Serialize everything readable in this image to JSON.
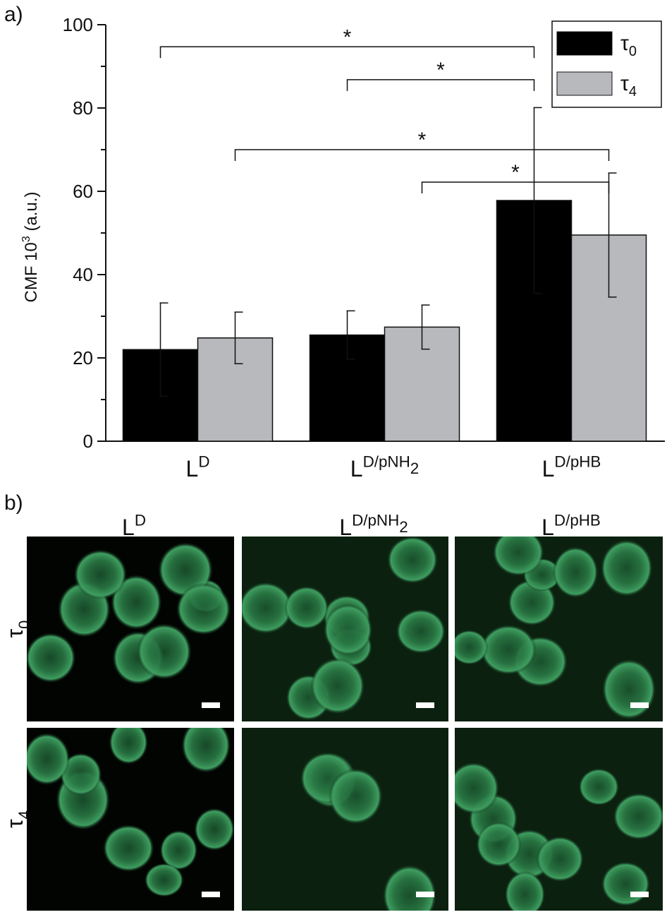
{
  "chart_data": {
    "type": "bar",
    "panel_label": "a)",
    "y_label": {
      "text": "CMF  10",
      "superscript": "3",
      "suffix": " (a.u.)"
    },
    "categories": [
      {
        "base": "L",
        "sup": "D"
      },
      {
        "base": "L",
        "sup": "D/pNH",
        "sup_sub": "2"
      },
      {
        "base": "L",
        "sup": "D/pHB"
      }
    ],
    "series": [
      {
        "name": "τ",
        "name_sub": "0",
        "color": "#000000",
        "values": [
          22,
          25.5,
          57.8
        ],
        "errors": [
          11.2,
          5.8,
          22.3
        ]
      },
      {
        "name": "τ",
        "name_sub": "4",
        "color": "#b8b9bd",
        "values": [
          24.8,
          27.4,
          49.5
        ],
        "errors": [
          6.2,
          5.3,
          14.9
        ]
      }
    ],
    "ylim": [
      0,
      100
    ],
    "yticks": [
      0,
      20,
      40,
      60,
      80,
      100
    ],
    "minor_yticks": [
      10,
      30,
      50,
      70,
      90
    ],
    "legend": "upper right",
    "brackets": [
      {
        "label": "*",
        "y": 94.7,
        "from_category": 0,
        "from_series": 0,
        "to_category": 2,
        "to_series": 0
      },
      {
        "label": "*",
        "y": 86.8,
        "from_category": 1,
        "from_series": 0,
        "to_category": 2,
        "to_series": 0
      },
      {
        "label": "*",
        "y": 70,
        "from_category": 0,
        "from_series": 1,
        "to_category": 2,
        "to_series": 1
      },
      {
        "label": "*",
        "y": 62.2,
        "from_category": 1,
        "from_series": 1,
        "to_category": 2,
        "to_series": 1
      }
    ]
  },
  "image_panel": {
    "label": "b)",
    "columns": [
      {
        "base": "L",
        "sup": "D"
      },
      {
        "base": "L",
        "sup": "D/pNH",
        "sup_sub": "2"
      },
      {
        "base": "L",
        "sup": "D/pHB"
      }
    ],
    "rows": [
      {
        "base": "τ",
        "sub": "0"
      },
      {
        "base": "τ",
        "sub": "4"
      }
    ]
  }
}
